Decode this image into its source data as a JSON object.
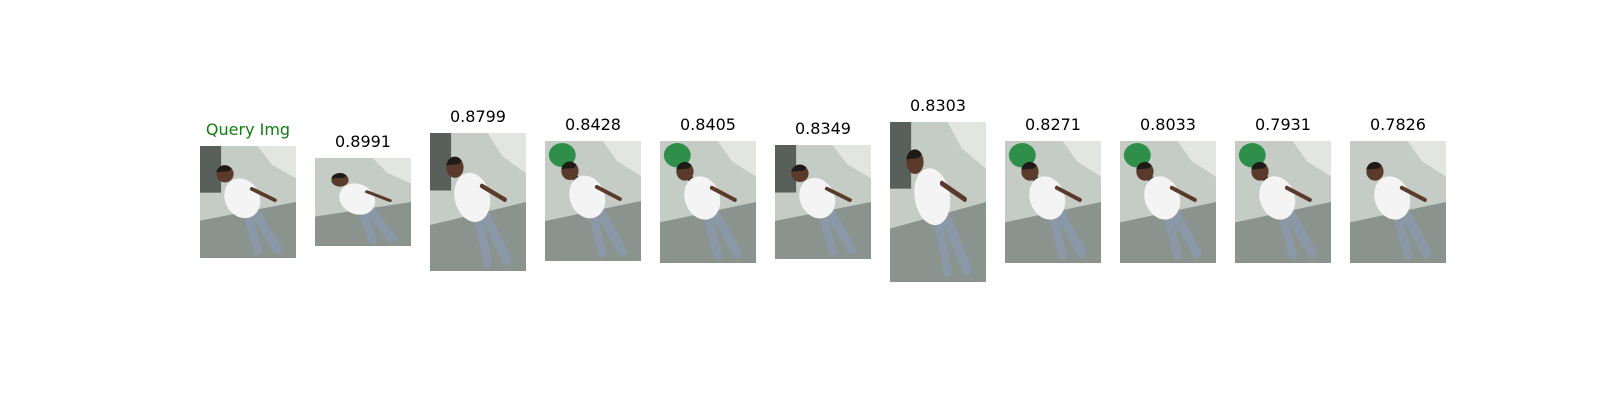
{
  "query": {
    "label": "Query Img",
    "label_color": "#108010"
  },
  "gallery_scores": [
    "0.8991",
    "0.8799",
    "0.8428",
    "0.8405",
    "0.8349",
    "0.8303",
    "0.8271",
    "0.8033",
    "0.7931",
    "0.7826"
  ],
  "colors": {
    "ground": "#c5cbc5",
    "shadow": "#5a6660",
    "shirt": "#f4f4f4",
    "jeans": "#8a98a8",
    "skin": "#5a3a2a",
    "hair": "#1e1a18",
    "green_shirt": "#2f8f4a"
  }
}
